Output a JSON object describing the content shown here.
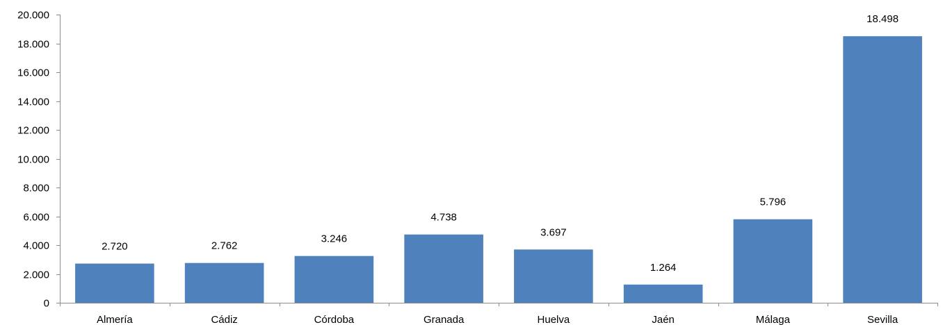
{
  "chart_data": {
    "type": "bar",
    "categories": [
      "Almería",
      "Cádiz",
      "Córdoba",
      "Granada",
      "Huelva",
      "Jaén",
      "Málaga",
      "Sevilla"
    ],
    "values": [
      2720,
      2762,
      3246,
      4738,
      3697,
      1264,
      5796,
      18498
    ],
    "data_labels": [
      "2.720",
      "2.762",
      "3.246",
      "4.738",
      "3.697",
      "1.264",
      "5.796",
      "18.498"
    ],
    "ylim": [
      0,
      20000
    ],
    "yticks": [
      0,
      2000,
      4000,
      6000,
      8000,
      10000,
      12000,
      14000,
      16000,
      18000,
      20000
    ],
    "ytick_labels": [
      "0",
      "2.000",
      "4.000",
      "6.000",
      "8.000",
      "10.000",
      "12.000",
      "14.000",
      "16.000",
      "18.000",
      "20.000"
    ],
    "bar_color": "#4f81bd",
    "grid": false,
    "legend": "none",
    "title": "",
    "xlabel": "",
    "ylabel": ""
  }
}
